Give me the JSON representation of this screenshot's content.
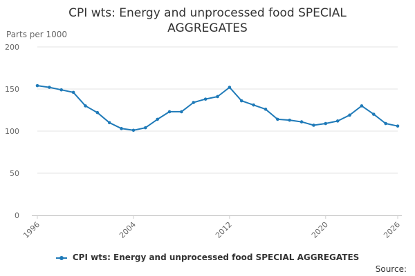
{
  "chart_data": {
    "type": "line",
    "title": "CPI wts: Energy and unprocessed food SPECIAL AGGREGATES",
    "ylabel": "Parts per 1000",
    "xlabel": "",
    "ylim": [
      0,
      200
    ],
    "yticks": [
      0,
      50,
      100,
      150,
      200
    ],
    "xlim": [
      1996,
      2026
    ],
    "xticks": [
      1996,
      2004,
      2012,
      2020,
      2026
    ],
    "x": [
      1996,
      1997,
      1998,
      1999,
      2000,
      2001,
      2002,
      2003,
      2004,
      2005,
      2006,
      2007,
      2008,
      2009,
      2010,
      2011,
      2012,
      2013,
      2014,
      2015,
      2016,
      2017,
      2018,
      2019,
      2020,
      2021,
      2022,
      2023,
      2024,
      2025,
      2026
    ],
    "series": [
      {
        "name": "CPI wts: Energy and unprocessed food SPECIAL AGGREGATES",
        "color": "#1f7ab8",
        "values": [
          154,
          152,
          149,
          146,
          130,
          122,
          110,
          103,
          101,
          104,
          114,
          123,
          123,
          134,
          138,
          141,
          152,
          136,
          131,
          126,
          114,
          113,
          111,
          107,
          109,
          112,
          119,
          130,
          120,
          109,
          106
        ]
      }
    ],
    "grid": true,
    "legend": "bottom"
  },
  "source_label": "Source:"
}
